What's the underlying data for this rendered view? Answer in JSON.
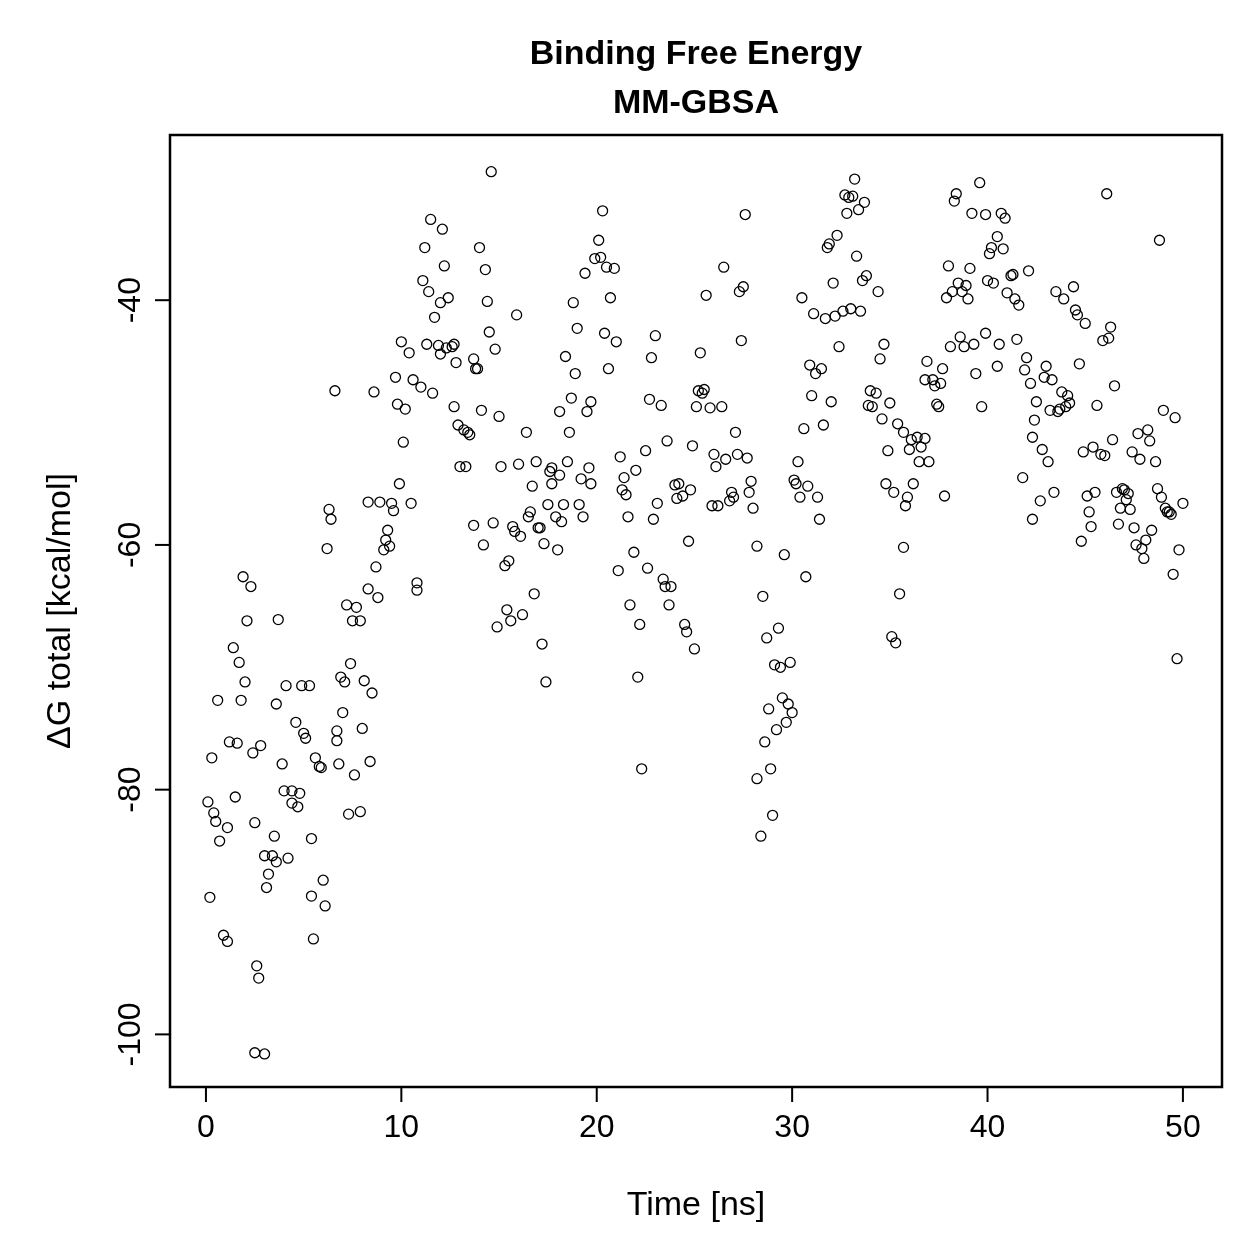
{
  "chart_data": {
    "type": "scatter",
    "title": "Binding Free Energy",
    "subtitle": "MM-GBSA",
    "xlabel": "Time [ns]",
    "ylabel": "ΔG total [kcal/mol]",
    "marker": "circle",
    "xlim": [
      -1.84,
      52
    ],
    "ylim": [
      -104.3,
      -26.5
    ],
    "xticks": [
      0,
      10,
      20,
      30,
      40,
      50
    ],
    "yticks": [
      -100,
      -80,
      -60,
      -40
    ],
    "x": [
      0.1,
      0.2,
      0.3,
      0.4,
      0.5,
      0.7,
      0.6,
      0.9,
      1.1,
      1.1,
      1.2,
      1.4,
      1.5,
      1.6,
      1.7,
      1.8,
      1.9,
      2.0,
      2.1,
      2.3,
      2.4,
      2.5,
      2.6,
      2.7,
      2.5,
      3.0,
      2.8,
      3.0,
      3.1,
      3.2,
      3.4,
      3.5,
      3.6,
      3.6,
      3.7,
      3.9,
      4.0,
      4.1,
      4.2,
      4.4,
      4.4,
      4.6,
      4.7,
      4.8,
      4.9,
      5.0,
      5.1,
      5.3,
      5.4,
      5.4,
      5.5,
      5.6,
      5.8,
      5.9,
      6.0,
      6.1,
      6.2,
      6.3,
      6.4,
      6.6,
      6.7,
      6.7,
      6.8,
      6.9,
      7.0,
      7.1,
      7.2,
      7.3,
      7.4,
      7.5,
      7.6,
      7.7,
      7.9,
      7.9,
      8.0,
      8.1,
      8.3,
      8.3,
      8.4,
      8.5,
      8.6,
      8.7,
      8.8,
      8.9,
      9.1,
      9.2,
      9.3,
      9.4,
      9.5,
      9.6,
      9.7,
      9.8,
      9.9,
      10.0,
      10.1,
      10.2,
      10.4,
      10.5,
      10.6,
      10.8,
      10.8,
      11.0,
      11.1,
      11.2,
      11.3,
      11.4,
      11.5,
      11.6,
      11.7,
      11.9,
      12.0,
      12.0,
      12.1,
      12.2,
      12.3,
      12.4,
      12.6,
      12.7,
      12.7,
      12.8,
      12.9,
      13.0,
      13.2,
      13.3,
      13.4,
      13.5,
      13.7,
      13.7,
      13.8,
      13.9,
      14.0,
      14.1,
      14.2,
      14.3,
      14.4,
      14.5,
      14.6,
      14.7,
      14.8,
      14.9,
      15.0,
      15.1,
      15.3,
      15.4,
      15.5,
      15.6,
      15.7,
      15.8,
      15.9,
      16.0,
      16.1,
      16.2,
      16.4,
      16.5,
      16.6,
      16.7,
      16.8,
      16.9,
      17.0,
      17.1,
      17.2,
      17.3,
      17.4,
      17.5,
      17.6,
      17.7,
      17.7,
      17.9,
      18.0,
      18.1,
      18.1,
      18.2,
      18.3,
      18.4,
      18.5,
      18.6,
      18.7,
      18.8,
      18.9,
      19.0,
      19.1,
      19.2,
      19.3,
      19.4,
      19.5,
      19.6,
      19.7,
      19.7,
      19.9,
      20.1,
      20.2,
      20.3,
      20.4,
      20.5,
      20.6,
      20.7,
      20.9,
      21.0,
      21.1,
      21.2,
      21.3,
      21.4,
      21.5,
      21.6,
      21.7,
      21.9,
      22.0,
      22.1,
      22.2,
      22.3,
      22.5,
      22.6,
      22.7,
      22.8,
      22.9,
      23.0,
      23.1,
      23.3,
      23.4,
      23.5,
      23.6,
      23.7,
      23.8,
      24.0,
      24.1,
      24.2,
      24.4,
      24.5,
      24.6,
      24.7,
      24.8,
      24.9,
      25.0,
      25.1,
      25.2,
      25.3,
      25.4,
      25.5,
      25.6,
      25.8,
      25.9,
      26.0,
      26.1,
      26.2,
      26.4,
      26.5,
      26.6,
      26.8,
      26.9,
      27.0,
      27.1,
      27.2,
      27.3,
      27.4,
      27.5,
      27.6,
      27.7,
      27.8,
      27.9,
      28.0,
      28.2,
      28.2,
      28.4,
      28.5,
      28.6,
      28.7,
      28.8,
      28.9,
      29.0,
      29.1,
      29.2,
      29.3,
      29.4,
      29.5,
      29.6,
      29.7,
      29.8,
      29.9,
      30.0,
      30.1,
      30.2,
      30.3,
      30.4,
      30.5,
      30.6,
      30.7,
      30.8,
      30.9,
      31.0,
      31.1,
      31.2,
      31.3,
      31.4,
      31.5,
      31.6,
      31.7,
      31.8,
      31.9,
      32.0,
      32.1,
      32.2,
      32.3,
      32.4,
      32.6,
      32.7,
      32.8,
      32.9,
      33.0,
      33.1,
      33.2,
      33.3,
      33.4,
      33.5,
      33.6,
      33.7,
      33.8,
      33.9,
      34.0,
      34.1,
      34.3,
      34.4,
      34.5,
      34.6,
      34.7,
      34.8,
      34.9,
      35.0,
      35.1,
      35.2,
      35.3,
      35.4,
      35.5,
      35.7,
      35.7,
      35.8,
      35.9,
      36.0,
      36.1,
      36.2,
      36.4,
      36.5,
      36.6,
      36.8,
      36.8,
      36.9,
      37.0,
      37.2,
      37.3,
      37.4,
      37.5,
      37.6,
      37.7,
      37.8,
      37.9,
      38.0,
      38.1,
      38.2,
      38.3,
      38.4,
      38.5,
      38.6,
      38.7,
      38.8,
      38.9,
      39.0,
      39.1,
      39.2,
      39.3,
      39.4,
      39.6,
      39.7,
      39.9,
      39.9,
      40.0,
      40.1,
      40.2,
      40.3,
      40.5,
      40.5,
      40.6,
      40.7,
      40.8,
      40.9,
      41.0,
      41.2,
      41.3,
      41.4,
      41.5,
      41.6,
      41.8,
      41.9,
      42.0,
      42.1,
      42.2,
      42.3,
      42.3,
      42.4,
      42.5,
      42.7,
      42.8,
      42.9,
      43.0,
      43.1,
      43.2,
      43.3,
      43.4,
      43.5,
      43.6,
      43.7,
      43.8,
      43.9,
      44.0,
      44.1,
      44.2,
      44.4,
      44.5,
      44.6,
      44.7,
      44.8,
      44.9,
      45.0,
      45.1,
      45.2,
      45.3,
      45.4,
      45.5,
      45.6,
      45.8,
      45.9,
      46.0,
      46.1,
      46.2,
      46.3,
      46.4,
      46.5,
      46.6,
      46.7,
      46.8,
      46.9,
      47.0,
      47.1,
      47.2,
      47.3,
      47.4,
      47.5,
      47.6,
      47.7,
      47.8,
      47.9,
      48.0,
      48.1,
      48.2,
      48.3,
      48.4,
      48.6,
      48.7,
      48.8,
      48.9,
      49.0,
      49.1,
      49.2,
      49.3,
      49.4,
      49.5,
      49.6,
      49.7,
      49.8,
      50.0
    ],
    "series": [
      {
        "color": "#000000",
        "values": [
          -81.0,
          -88.8,
          -77.4,
          -81.9,
          -82.6,
          -84.2,
          -72.7,
          -91.9,
          -83.1,
          -92.4,
          -76.1,
          -68.4,
          -80.6,
          -76.2,
          -69.6,
          -72.7,
          -62.6,
          -71.2,
          -66.2,
          -63.4,
          -77.0,
          -82.7,
          -94.4,
          -95.4,
          -101.5,
          -101.6,
          -76.4,
          -85.4,
          -88.0,
          -86.9,
          -85.4,
          -83.8,
          -85.9,
          -73.0,
          -66.1,
          -77.9,
          -80.1,
          -71.5,
          -85.6,
          -80.1,
          -81.1,
          -74.5,
          -81.4,
          -80.3,
          -71.5,
          -75.4,
          -75.8,
          -71.5,
          -84.0,
          -88.7,
          -92.2,
          -77.4,
          -78.1,
          -78.2,
          -87.4,
          -89.5,
          -60.3,
          -57.1,
          -57.9,
          -47.4,
          -76.0,
          -75.2,
          -77.9,
          -70.8,
          -73.7,
          -71.2,
          -64.9,
          -82.0,
          -69.7,
          -66.2,
          -78.8,
          -65.1,
          -66.2,
          -81.8,
          -75.0,
          -71.1,
          -63.6,
          -56.5,
          -77.7,
          -72.1,
          -47.5,
          -61.8,
          -64.3,
          -56.5,
          -60.4,
          -59.6,
          -58.8,
          -60.1,
          -56.6,
          -57.2,
          -46.3,
          -48.5,
          -55.0,
          -43.4,
          -51.6,
          -48.9,
          -44.3,
          -56.6,
          -46.5,
          -63.1,
          -63.7,
          -47.1,
          -38.4,
          -35.7,
          -43.6,
          -39.3,
          -33.4,
          -47.6,
          -41.4,
          -43.7,
          -44.4,
          -40.2,
          -34.2,
          -37.2,
          -43.9,
          -39.8,
          -43.8,
          -43.6,
          -48.7,
          -45.1,
          -50.2,
          -53.6,
          -50.6,
          -53.6,
          -50.8,
          -51.0,
          -44.8,
          -58.4,
          -45.6,
          -45.6,
          -35.7,
          -49.0,
          -60.0,
          -37.5,
          -40.1,
          -42.6,
          -29.5,
          -58.2,
          -44.0,
          -66.7,
          -49.5,
          -53.6,
          -61.7,
          -65.3,
          -61.3,
          -66.2,
          -58.5,
          -58.9,
          -41.2,
          -53.4,
          -59.3,
          -65.7,
          -50.8,
          -57.7,
          -57.3,
          -55.2,
          -64.0,
          -53.2,
          -58.6,
          -58.6,
          -68.1,
          -59.9,
          -71.2,
          -56.7,
          -54.0,
          -55.0,
          -53.7,
          -57.7,
          -60.4,
          -49.1,
          -54.3,
          -58.1,
          -56.7,
          -44.6,
          -53.2,
          -50.8,
          -48.0,
          -40.2,
          -46.0,
          -42.3,
          -56.7,
          -54.6,
          -57.7,
          -37.8,
          -49.1,
          -53.7,
          -48.3,
          -55.0,
          -36.6,
          -35.1,
          -36.5,
          -32.7,
          -42.7,
          -37.3,
          -45.6,
          -39.8,
          -37.4,
          -43.4,
          -62.1,
          -52.8,
          -55.5,
          -54.5,
          -55.9,
          -57.7,
          -64.9,
          -60.6,
          -53.9,
          -70.8,
          -66.5,
          -78.3,
          -52.3,
          -61.9,
          -48.1,
          -44.7,
          -57.9,
          -42.9,
          -56.6,
          -48.6,
          -62.8,
          -63.4,
          -51.5,
          -64.9,
          -63.4,
          -55.1,
          -56.2,
          -55.0,
          -56.0,
          -66.5,
          -67.1,
          -59.7,
          -55.5,
          -51.9,
          -68.5,
          -48.7,
          -47.4,
          -44.3,
          -47.6,
          -47.3,
          -39.6,
          -48.8,
          -56.8,
          -52.6,
          -53.6,
          -56.8,
          -48.7,
          -37.3,
          -53.0,
          -56.4,
          -55.7,
          -56.1,
          -50.8,
          -52.6,
          -39.3,
          -43.3,
          -38.9,
          -33.0,
          -52.9,
          -55.7,
          -54.8,
          -57.0,
          -60.1,
          -79.1,
          -83.8,
          -64.2,
          -76.1,
          -67.6,
          -73.4,
          -78.3,
          -82.1,
          -69.8,
          -75.1,
          -66.8,
          -70.0,
          -72.5,
          -60.8,
          -74.5,
          -73.0,
          -69.6,
          -73.7,
          -54.7,
          -55.0,
          -53.2,
          -56.1,
          -39.8,
          -50.5,
          -62.6,
          -55.2,
          -45.3,
          -47.8,
          -41.1,
          -46.0,
          -56.1,
          -57.9,
          -45.6,
          -50.2,
          -41.5,
          -35.7,
          -35.4,
          -48.3,
          -38.6,
          -41.3,
          -34.7,
          -43.8,
          -40.9,
          -31.4,
          -32.9,
          -31.6,
          -40.7,
          -31.5,
          -30.1,
          -36.4,
          -32.6,
          -40.9,
          -38.4,
          -32.0,
          -38.0,
          -48.6,
          -47.4,
          -48.7,
          -47.6,
          -39.3,
          -44.8,
          -49.7,
          -43.6,
          -55.0,
          -52.3,
          -48.4,
          -67.5,
          -55.7,
          -68.0,
          -50.1,
          -64.0,
          -50.8,
          -60.2,
          -56.8,
          -56.1,
          -52.2,
          -51.4,
          -55.0,
          -51.2,
          -53.2,
          -52.0,
          -46.5,
          -51.3,
          -45.0,
          -53.2,
          -46.5,
          -47.0,
          -48.5,
          -48.7,
          -46.8,
          -45.6,
          -56.0,
          -39.8,
          -37.2,
          -43.8,
          -39.3,
          -31.9,
          -31.3,
          -38.6,
          -43.0,
          -39.3,
          -43.8,
          -38.8,
          -39.9,
          -37.4,
          -32.9,
          -43.6,
          -46.0,
          -30.4,
          -48.7,
          -42.7,
          -33.0,
          -38.4,
          -36.2,
          -35.7,
          -38.6,
          -45.4,
          -34.8,
          -43.6,
          -32.9,
          -35.8,
          -33.3,
          -39.4,
          -38.0,
          -37.9,
          -39.9,
          -43.2,
          -40.4,
          -54.5,
          -45.7,
          -44.7,
          -37.6,
          -46.8,
          -57.9,
          -51.2,
          -49.8,
          -48.3,
          -56.4,
          -52.2,
          -46.3,
          -45.4,
          -53.2,
          -49.0,
          -46.5,
          -55.7,
          -39.3,
          -49.1,
          -48.9,
          -47.5,
          -39.9,
          -48.7,
          -47.8,
          -48.4,
          -38.9,
          -40.8,
          -41.2,
          -45.2,
          -59.7,
          -52.4,
          -41.9,
          -56.0,
          -57.3,
          -58.5,
          -52.0,
          -55.7,
          -48.6,
          -52.6,
          -43.3,
          -52.7,
          -31.3,
          -43.1,
          -42.2,
          -51.4,
          -47.0,
          -55.7,
          -58.3,
          -57.0,
          -55.4,
          -55.5,
          -56.3,
          -55.8,
          -57.1,
          -52.4,
          -58.6,
          -60.0,
          -50.9,
          -53.0,
          -60.3,
          -61.1,
          -59.6,
          -50.6,
          -51.5,
          -58.8,
          -53.2,
          -55.4,
          -35.1,
          -56.1,
          -49.0,
          -57.0,
          -57.3,
          -57.3,
          -57.5,
          -62.4,
          -49.6,
          -69.3,
          -60.4,
          -56.6
        ]
      }
    ]
  }
}
